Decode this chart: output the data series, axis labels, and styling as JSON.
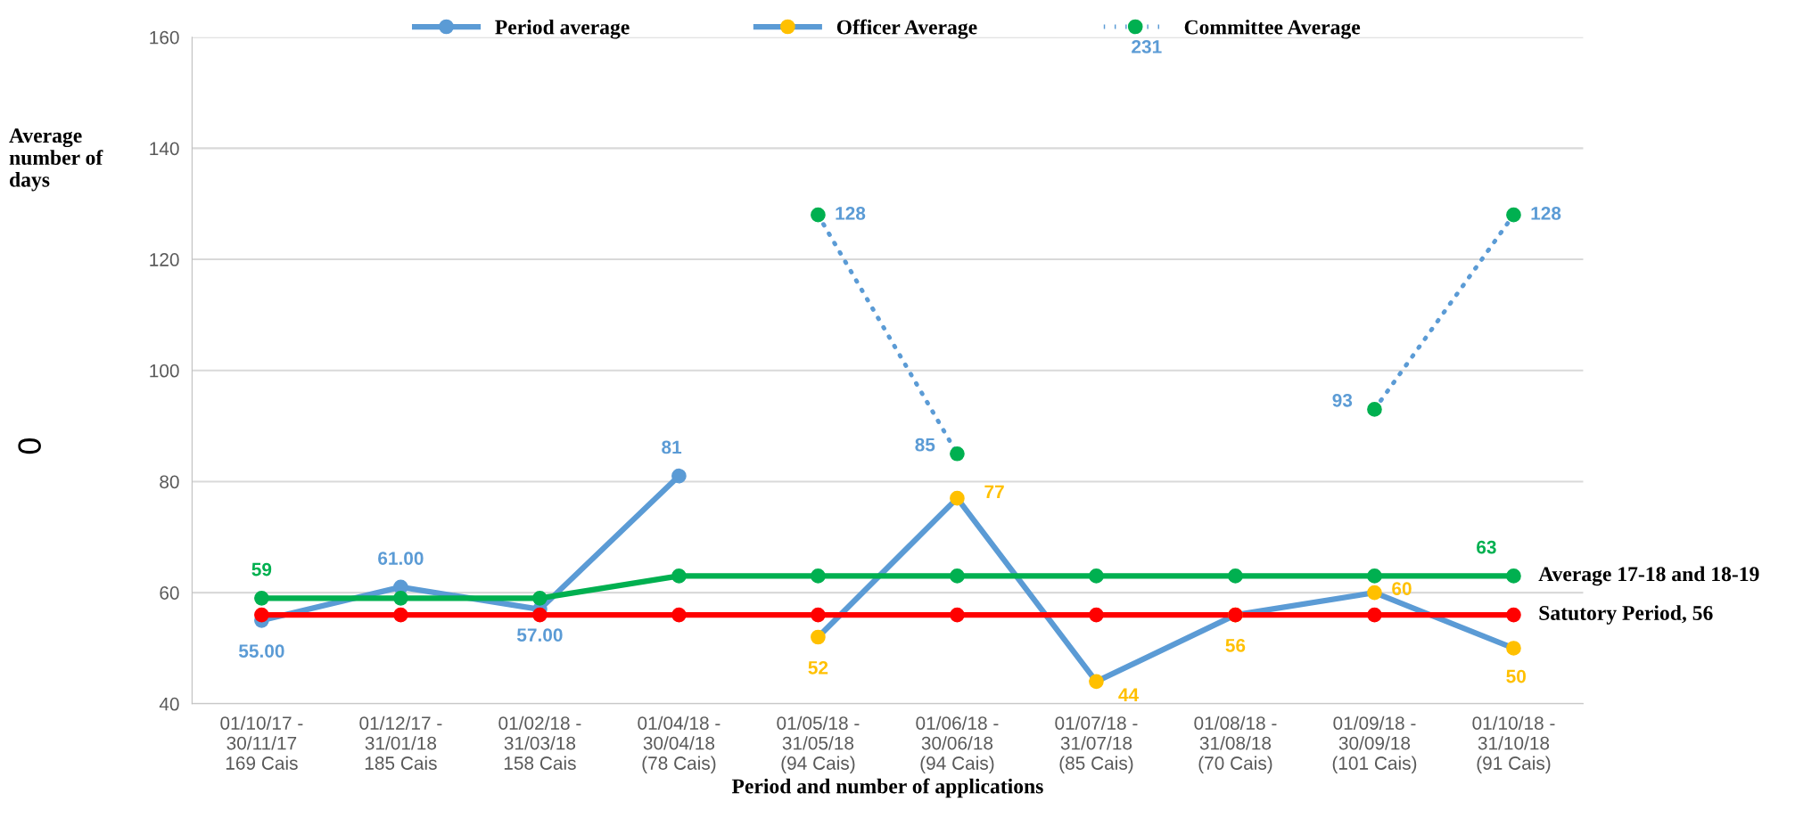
{
  "chart_data": {
    "type": "line",
    "xlabel": "Period and number of applications",
    "ylabel": "Average\nnumber of\ndays",
    "categories": [
      "01/10/17 -\n30/11/17\n169 Cais",
      "01/12/17 -\n31/01/18\n185 Cais",
      "01/02/18 -\n31/03/18\n158 Cais",
      "01/04/18 -\n30/04/18\n(78 Cais)",
      "01/05/18 -\n31/05/18\n(94 Cais)",
      "01/06/18 -\n30/06/18\n(94 Cais)",
      "01/07/18 -\n31/07/18\n(85 Cais)",
      "01/08/18 -\n31/08/18\n(70 Cais)",
      "01/09/18 -\n30/09/18\n(101 Cais)",
      "01/10/18 -\n31/10/18\n(91 Cais)"
    ],
    "series": [
      {
        "name": "Period average",
        "color": "#5b9bd5",
        "values": [
          55,
          61,
          57,
          81,
          null,
          null,
          null,
          null,
          null,
          null
        ],
        "value_labels": [
          "55.00",
          "61.00",
          "57.00",
          "81",
          null,
          null,
          null,
          null,
          null,
          null
        ]
      },
      {
        "name": "Officer Average",
        "color": "#5b9bd5",
        "colors": [
          "#ffc000",
          "#ffc000",
          "#ffc000",
          "#ffc000",
          "#ffc000",
          "#ffc000",
          "#ffc000",
          "#ffc000",
          "#ffc000",
          "#ffc000"
        ],
        "values": [
          null,
          null,
          null,
          null,
          52,
          77,
          44,
          56,
          60,
          50
        ],
        "value_labels": [
          null,
          null,
          null,
          null,
          "52",
          "77",
          "44",
          "56",
          "60",
          "50"
        ]
      },
      {
        "name": "Committee Average",
        "color": "#5b9bd5",
        "line_style": "dotted",
        "colors": [
          "#00b050",
          "#00b050",
          "#00b050",
          "#00b050",
          "#00b050",
          "#00b050",
          "#00b050",
          "#00b050",
          "#00b050",
          "#00b050"
        ],
        "values": [
          null,
          null,
          null,
          null,
          128,
          85,
          null,
          null,
          93,
          128
        ],
        "value_labels": [
          null,
          null,
          null,
          null,
          "128",
          "85",
          null,
          null,
          "93",
          "128"
        ]
      },
      {
        "name": "Average 17-18 and 18-19",
        "color": "#00b050",
        "values": [
          59,
          59,
          59,
          63,
          63,
          63,
          63,
          63,
          63,
          63
        ],
        "value_labels": [
          "59",
          null,
          null,
          null,
          null,
          null,
          null,
          null,
          null,
          "63"
        ]
      },
      {
        "name": "Satutory Period, 56",
        "color": "#ff0000",
        "values": [
          56,
          56,
          56,
          56,
          56,
          56,
          56,
          56,
          56,
          56
        ]
      }
    ],
    "ylim": [
      40,
      160
    ],
    "yticks": [
      40,
      60,
      80,
      100,
      120,
      140,
      160
    ],
    "grid": "y",
    "legend": "top",
    "marker": "circle",
    "line_style": "solid",
    "annotations": [
      "0",
      "231"
    ]
  }
}
